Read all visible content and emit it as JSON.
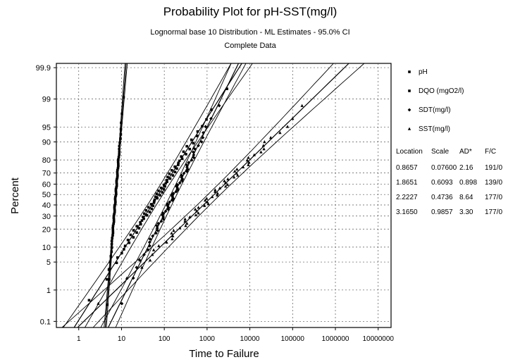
{
  "chart_data": {
    "type": "scatter",
    "title": "Probability Plot for pH-SST(mg/l)",
    "subtitle": "Lognormal base 10 Distribution - ML Estimates - 95.0% CI",
    "subtitle2": "Complete Data",
    "xlabel": "Time to Failure",
    "ylabel": "Percent",
    "x_scale": "log10",
    "y_scale": "normal-probability",
    "xlim": [
      0.3,
      20000000
    ],
    "ylim": [
      0.06,
      99.93
    ],
    "x_ticks": [
      1,
      10,
      100,
      1000,
      10000,
      100000,
      1000000,
      10000000
    ],
    "x_tick_labels": [
      "1",
      "10",
      "100",
      "1000",
      "10000",
      "100000",
      "1000000",
      "10000000"
    ],
    "y_ticks": [
      0.1,
      1,
      5,
      10,
      20,
      30,
      40,
      50,
      60,
      70,
      80,
      90,
      95,
      99,
      99.9
    ],
    "y_tick_labels": [
      "0.1",
      "1",
      "5",
      "10",
      "20",
      "30",
      "40",
      "50",
      "60",
      "70",
      "80",
      "90",
      "95",
      "99",
      "99.9"
    ],
    "grid": true,
    "legend_position": "right",
    "series": [
      {
        "name": "pH",
        "marker": "square",
        "location": 0.8657,
        "scale": 0.076,
        "n": 191
      },
      {
        "name": "DQO (mgO2/l)",
        "marker": "square",
        "location": 1.8651,
        "scale": 0.6093,
        "n": 139
      },
      {
        "name": "SDT(mg/l)",
        "marker": "diamond",
        "location": 2.2227,
        "scale": 0.4736,
        "n": 177
      },
      {
        "name": "SST(mg/l)",
        "marker": "triangle",
        "location": 3.165,
        "scale": 0.9857,
        "n": 177
      }
    ],
    "stats_table": {
      "headers": [
        "Location",
        "Scale",
        "AD*",
        "F/C"
      ],
      "rows": [
        [
          "0.8657",
          "0.07600",
          "2.16",
          "191/0"
        ],
        [
          "1.8651",
          "0.6093",
          "0.898",
          "139/0"
        ],
        [
          "2.2227",
          "0.4736",
          "8.64",
          "177/0"
        ],
        [
          "3.1650",
          "0.9857",
          "3.30",
          "177/0"
        ]
      ]
    }
  }
}
